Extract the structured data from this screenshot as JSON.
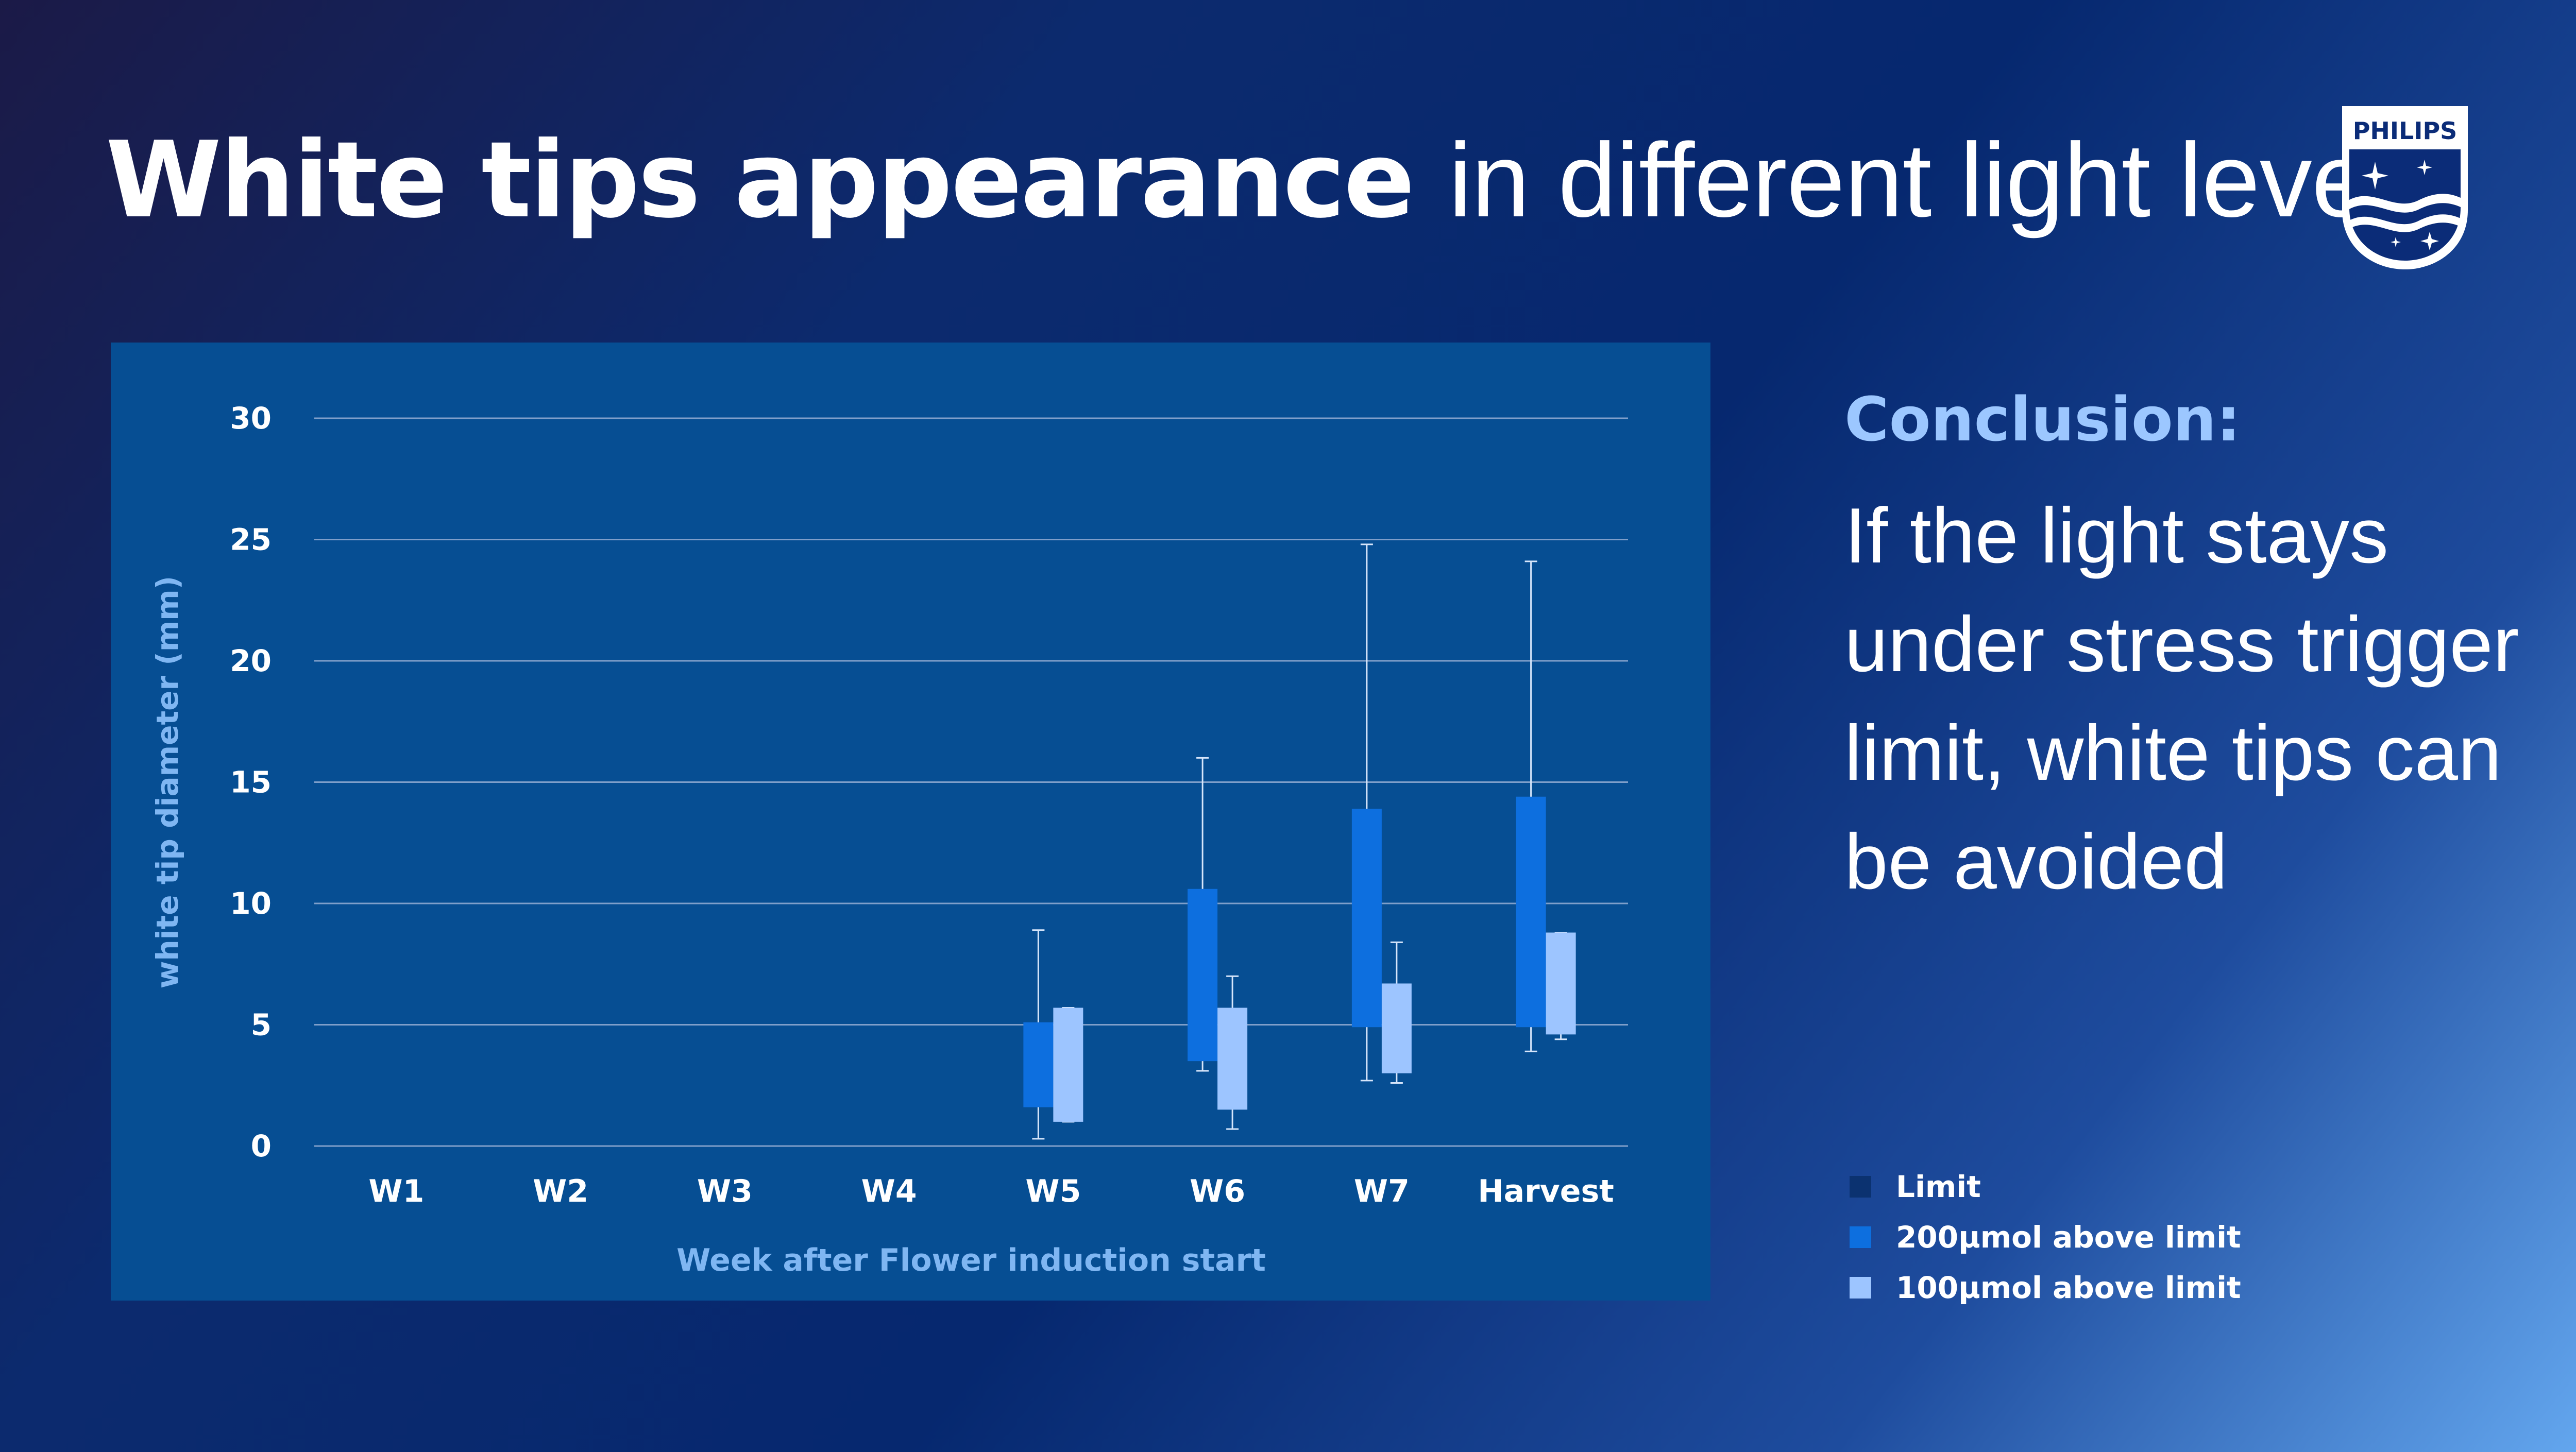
{
  "title": {
    "bold": "White tips appearance",
    "regular": "in different light levels"
  },
  "brand": {
    "name": "PHILIPS"
  },
  "conclusion": {
    "heading": "Conclusion:",
    "body": "If the light stays under stress trigger limit, white tips can be avoided"
  },
  "colors": {
    "limit": "#0b3270",
    "s200": "#0d6fdf",
    "s100": "#9dc5ff",
    "panel": "#064e93",
    "axis_text": "#ffffff",
    "axis_title": "#7fb6f2"
  },
  "chart_data": {
    "type": "box",
    "xlabel": "Week after Flower induction start",
    "ylabel": "white tip diameter (mm)",
    "ylim": [
      0,
      30
    ],
    "yticks": [
      0,
      5,
      10,
      15,
      20,
      25,
      30
    ],
    "grid": true,
    "legend_position": "bottom-right",
    "categories": [
      "W1",
      "W2",
      "W3",
      "W4",
      "W5",
      "W6",
      "W7",
      "Harvest"
    ],
    "series": [
      {
        "name": "Limit",
        "color": "#0b3270",
        "boxes": [
          null,
          null,
          null,
          null,
          null,
          null,
          null,
          null
        ]
      },
      {
        "name": "200µmol above limit",
        "color": "#0d6fdf",
        "boxes": [
          null,
          null,
          null,
          null,
          {
            "min": 0.3,
            "q1": 1.6,
            "q3": 5.1,
            "max": 8.9
          },
          {
            "min": 3.1,
            "q1": 3.5,
            "q3": 10.6,
            "max": 16.0
          },
          {
            "min": 2.7,
            "q1": 4.9,
            "q3": 13.9,
            "max": 24.8
          },
          {
            "min": 3.9,
            "q1": 4.9,
            "q3": 14.4,
            "max": 24.1
          }
        ]
      },
      {
        "name": "100µmol above limit",
        "color": "#9dc5ff",
        "boxes": [
          null,
          null,
          null,
          null,
          {
            "min": 1.0,
            "q1": 1.0,
            "q3": 5.7,
            "max": 5.7
          },
          {
            "min": 0.7,
            "q1": 1.5,
            "q3": 5.7,
            "max": 7.0
          },
          {
            "min": 2.6,
            "q1": 3.0,
            "q3": 6.7,
            "max": 8.4
          },
          {
            "min": 4.4,
            "q1": 4.6,
            "q3": 8.8,
            "max": 8.8
          }
        ]
      }
    ]
  }
}
